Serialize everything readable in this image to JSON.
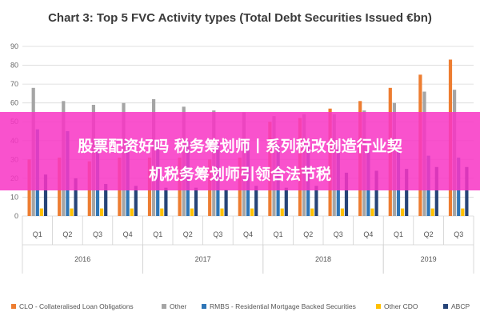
{
  "banner": {
    "line1": "股票配资好吗 税务筹划师丨系列税改创造行业契",
    "line2": "机税务筹划师引领合法节税"
  },
  "chart_data": {
    "type": "bar",
    "title": "Chart 3: Top 5 FVC Activity types (Total Debt Securities Issued €bn)",
    "xlabel": "",
    "ylabel": "",
    "ylim": [
      0,
      90
    ],
    "yticks": [
      0,
      10,
      20,
      30,
      40,
      50,
      60,
      70,
      80,
      90
    ],
    "grid": true,
    "legend_position": "bottom",
    "categories": [
      "Q1",
      "Q2",
      "Q3",
      "Q4",
      "Q1",
      "Q2",
      "Q3",
      "Q4",
      "Q1",
      "Q2",
      "Q3",
      "Q4",
      "Q1",
      "Q2",
      "Q3"
    ],
    "groups": [
      {
        "label": "2016",
        "start": 0,
        "count": 4
      },
      {
        "label": "2017",
        "start": 4,
        "count": 4
      },
      {
        "label": "2018",
        "start": 8,
        "count": 4
      },
      {
        "label": "2019",
        "start": 12,
        "count": 3
      }
    ],
    "series": [
      {
        "name": "CLO - Collateralised Loan Obligations",
        "color": "#ed7d31",
        "values": [
          30,
          31,
          29,
          31,
          31,
          31,
          30,
          31,
          50,
          52,
          57,
          61,
          68,
          75,
          83
        ]
      },
      {
        "name": "Other",
        "color": "#a5a5a5",
        "values": [
          68,
          61,
          59,
          60,
          62,
          58,
          56,
          55,
          53,
          54,
          54,
          56,
          60,
          66,
          67
        ]
      },
      {
        "name": "RMBS - Residential Mortgage Backed Securities",
        "color": "#2e75b6",
        "values": [
          46,
          45,
          41,
          40,
          40,
          40,
          39,
          38,
          38,
          38,
          37,
          35,
          35,
          32,
          31
        ]
      },
      {
        "name": "Other CDO",
        "color": "#ffc000",
        "values": [
          4,
          4,
          4,
          4,
          4,
          4,
          4,
          4,
          4,
          4,
          4,
          4,
          4,
          4,
          4
        ]
      },
      {
        "name": "ABCP",
        "color": "#264478",
        "values": [
          22,
          20,
          17,
          16,
          15,
          15,
          14,
          16,
          15,
          16,
          23,
          24,
          25,
          26,
          26
        ]
      }
    ]
  }
}
